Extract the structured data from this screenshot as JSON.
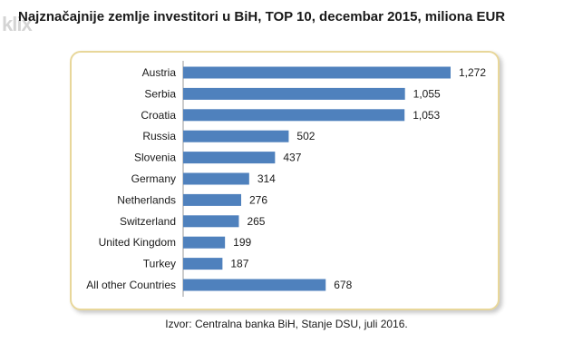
{
  "watermark": "klix",
  "source": "Izvor: Centralna  banka BiH, Stanje DSU, juli 2016.",
  "colors": {
    "bar": "#4f81bd",
    "panel_border": "#e8d79a"
  },
  "chart_data": {
    "type": "bar",
    "orientation": "horizontal",
    "title": "Najznačajnije zemlje investitori u BiH, TOP 10, decembar 2015, miliona EUR",
    "categories": [
      "Austria",
      "Serbia",
      "Croatia",
      "Russia",
      "Slovenia",
      "Germany",
      "Netherlands",
      "Switzerland",
      "United Kingdom",
      "Turkey",
      "All other Countries"
    ],
    "values": [
      1272,
      1055,
      1053,
      502,
      437,
      314,
      276,
      265,
      199,
      187,
      678
    ],
    "value_labels": [
      "1,272",
      "1,055",
      "1,053",
      "502",
      "437",
      "314",
      "276",
      "265",
      "199",
      "187",
      "678"
    ],
    "xlim": [
      0,
      1272
    ],
    "grid": false,
    "legend": "none"
  }
}
